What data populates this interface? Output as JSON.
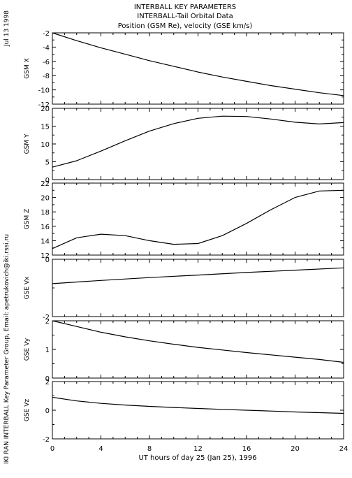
{
  "header": {
    "line1": "INTERBALL KEY PARAMETERS",
    "line2": "INTERBALL-Tail Orbital Data",
    "line3": "Position (GSM Re), velocity (GSE km/s)"
  },
  "side": {
    "date": "Jul 13 1998",
    "credit": "IKI RAN INTERBALL Key Parameter Group, Email: apetrukovich@iki.rssi.ru"
  },
  "chart_data": [
    {
      "type": "line",
      "ylabel": "GSM X",
      "ylim": [
        -12,
        -2
      ],
      "yticks": [
        -12,
        -10,
        -8,
        -6,
        -4,
        -2
      ],
      "xlim": [
        0,
        24
      ],
      "xticks": [
        0,
        4,
        8,
        12,
        16,
        20,
        24
      ],
      "x": [
        0,
        2,
        4,
        6,
        8,
        10,
        12,
        14,
        16,
        18,
        20,
        22,
        24
      ],
      "values": [
        -2.0,
        -3.1,
        -4.1,
        -5.0,
        -5.9,
        -6.7,
        -7.5,
        -8.2,
        -8.8,
        -9.4,
        -9.9,
        -10.4,
        -10.8
      ]
    },
    {
      "type": "line",
      "ylabel": "GSM Y",
      "ylim": [
        0,
        20
      ],
      "yticks": [
        0,
        5,
        10,
        15,
        20
      ],
      "xlim": [
        0,
        24
      ],
      "xticks": [
        0,
        4,
        8,
        12,
        16,
        20,
        24
      ],
      "x": [
        0,
        2,
        4,
        6,
        8,
        10,
        12,
        14,
        16,
        18,
        20,
        22,
        24
      ],
      "values": [
        3.5,
        5.3,
        8.0,
        10.9,
        13.6,
        15.7,
        17.2,
        17.8,
        17.7,
        17.0,
        16.1,
        15.6,
        16.0
      ]
    },
    {
      "type": "line",
      "ylabel": "GSM Z",
      "ylim": [
        12,
        22
      ],
      "yticks": [
        12,
        14,
        16,
        18,
        20,
        22
      ],
      "xlim": [
        0,
        24
      ],
      "xticks": [
        0,
        4,
        8,
        12,
        16,
        20,
        24
      ],
      "x": [
        0,
        2,
        4,
        6,
        8,
        10,
        12,
        14,
        16,
        18,
        20,
        22,
        24
      ],
      "values": [
        12.9,
        14.4,
        14.9,
        14.7,
        14.0,
        13.5,
        13.6,
        14.7,
        16.4,
        18.3,
        20.0,
        20.9,
        21.0
      ]
    },
    {
      "type": "line",
      "ylabel": "GSE Vx",
      "ylim": [
        -2,
        0
      ],
      "yticks": [
        -2,
        0
      ],
      "xlim": [
        0,
        24
      ],
      "xticks": [
        0,
        4,
        8,
        12,
        16,
        20,
        24
      ],
      "x": [
        0,
        4,
        8,
        12,
        16,
        20,
        24
      ],
      "values": [
        -0.85,
        -0.74,
        -0.64,
        -0.55,
        -0.46,
        -0.38,
        -0.3
      ]
    },
    {
      "type": "line",
      "ylabel": "GSE Vy",
      "ylim": [
        0,
        2
      ],
      "yticks": [
        0,
        1,
        2
      ],
      "xlim": [
        0,
        24
      ],
      "xticks": [
        0,
        4,
        8,
        12,
        16,
        20,
        24
      ],
      "x": [
        0,
        2,
        4,
        6,
        8,
        10,
        12,
        14,
        16,
        18,
        20,
        22,
        24
      ],
      "values": [
        2.0,
        1.8,
        1.6,
        1.44,
        1.3,
        1.18,
        1.07,
        0.98,
        0.89,
        0.81,
        0.73,
        0.65,
        0.55
      ]
    },
    {
      "type": "line",
      "ylabel": "GSE Vz",
      "ylim": [
        -2,
        2
      ],
      "yticks": [
        -2,
        0,
        2
      ],
      "xlim": [
        0,
        24
      ],
      "xticks": [
        0,
        4,
        8,
        12,
        16,
        20,
        24
      ],
      "x": [
        0,
        2,
        4,
        6,
        8,
        10,
        12,
        14,
        16,
        18,
        20,
        22,
        24
      ],
      "values": [
        0.9,
        0.65,
        0.48,
        0.36,
        0.27,
        0.19,
        0.12,
        0.06,
        0.0,
        -0.06,
        -0.12,
        -0.17,
        -0.22
      ],
      "xlabel": "UT hours of day  25 (Jan 25), 1996"
    }
  ]
}
